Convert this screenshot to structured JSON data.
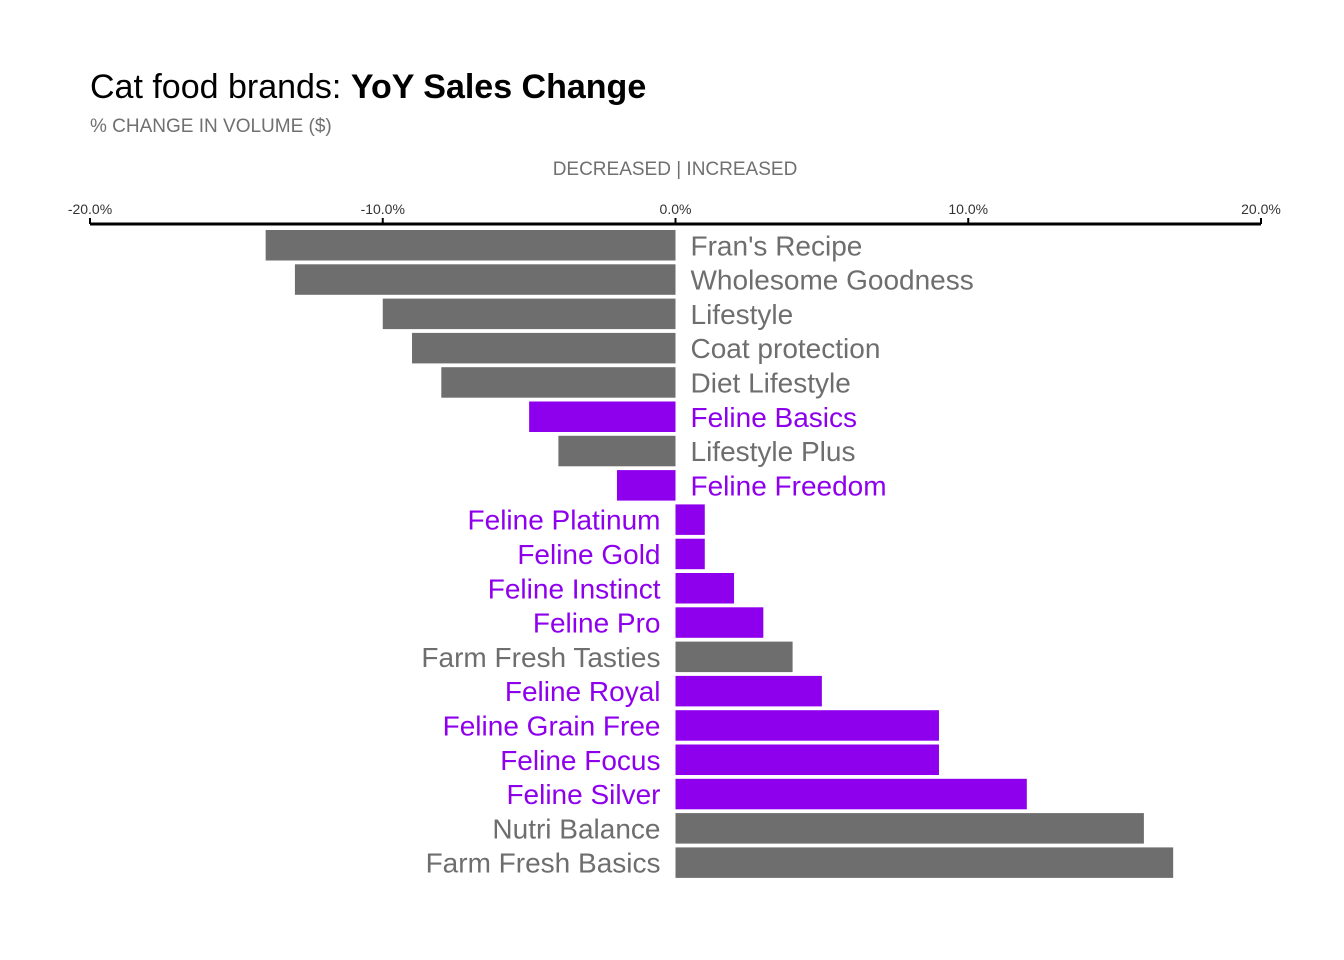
{
  "chart_data": {
    "type": "bar",
    "orientation": "horizontal",
    "title_regular": "Cat food brands: ",
    "title_bold": "YoY Sales Change",
    "subtitle": "% CHANGE IN VOLUME ($)",
    "axis_title": "DECREASED | INCREASED",
    "axis_position": "top",
    "xlim": [
      -0.2,
      0.2
    ],
    "tick_values": [
      -0.2,
      -0.1,
      0,
      0.1,
      0.2
    ],
    "tick_labels": [
      "-20.0%",
      "-10.0%",
      "0.0%",
      "10.0%",
      "20.0%"
    ],
    "grid": false,
    "legend": "none",
    "colors": {
      "highlight": "#8E00ED",
      "other": "#6E6E6E",
      "axis": "#000000"
    },
    "categories": [
      "Fran's Recipe",
      "Wholesome Goodness",
      "Lifestyle",
      "Coat protection",
      "Diet Lifestyle",
      "Feline Basics",
      "Lifestyle Plus",
      "Feline Freedom",
      "Feline Platinum",
      "Feline Gold",
      "Feline Instinct",
      "Feline Pro",
      "Farm Fresh Tasties",
      "Feline Royal",
      "Feline Grain Free",
      "Feline Focus",
      "Feline Silver",
      "Nutri Balance",
      "Farm Fresh Basics"
    ],
    "values": [
      -0.14,
      -0.13,
      -0.1,
      -0.09,
      -0.08,
      -0.05,
      -0.04,
      -0.02,
      0.01,
      0.01,
      0.02,
      0.03,
      0.04,
      0.05,
      0.09,
      0.09,
      0.12,
      0.16,
      0.17
    ],
    "highlight": [
      false,
      false,
      false,
      false,
      false,
      true,
      false,
      true,
      true,
      true,
      true,
      true,
      false,
      true,
      true,
      true,
      true,
      false,
      false
    ]
  }
}
